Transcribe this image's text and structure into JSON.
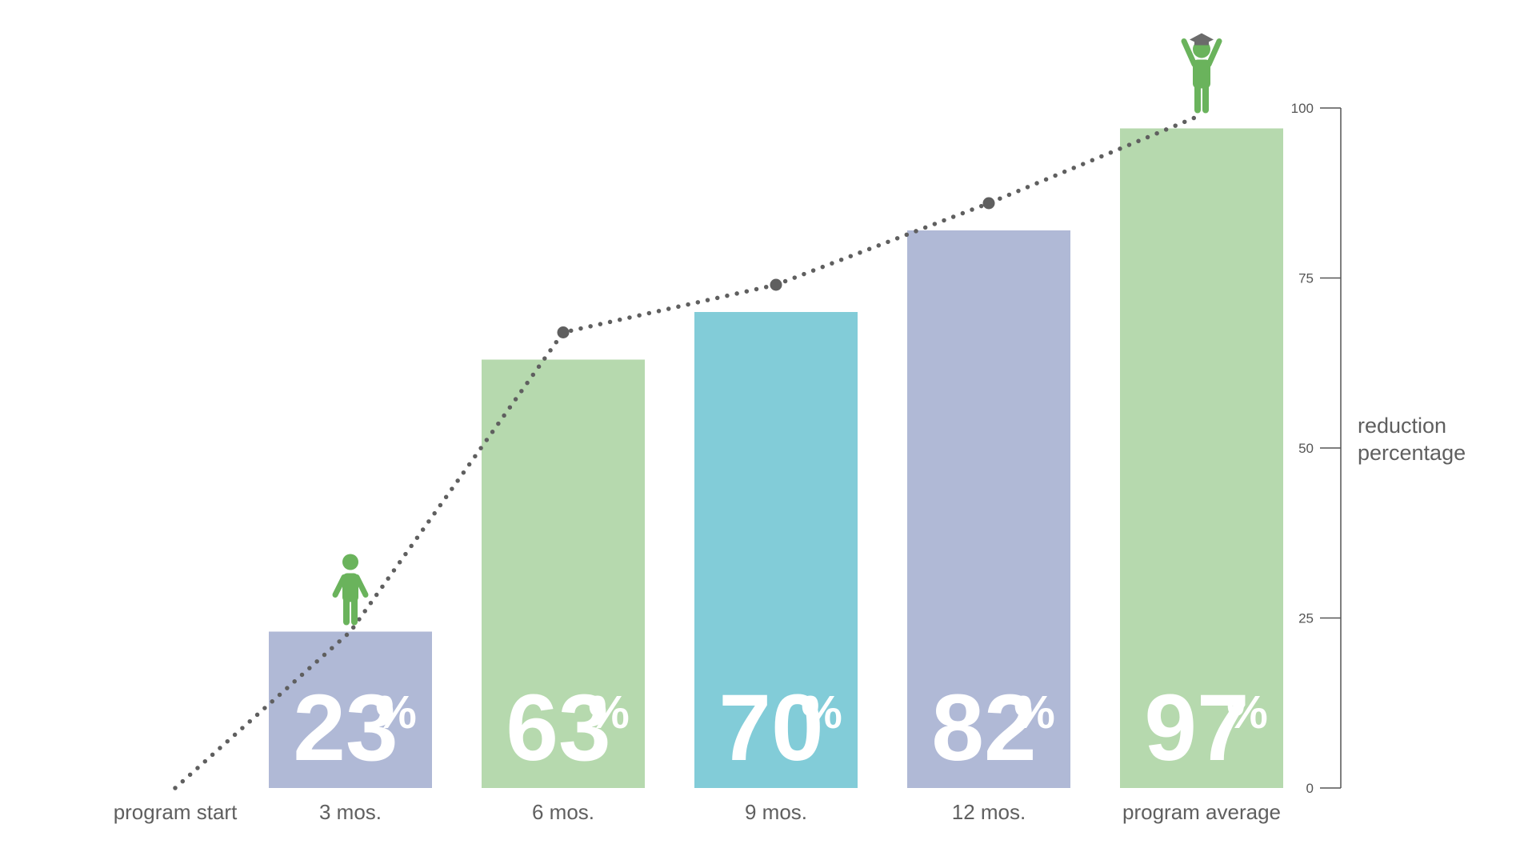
{
  "chart_data": {
    "type": "bar",
    "categories": [
      "3 mos.",
      "6 mos.",
      "9 mos.",
      "12 mos.",
      "program average"
    ],
    "values": [
      23,
      63,
      70,
      82,
      97
    ],
    "value_labels": [
      "23",
      "63",
      "70",
      "82",
      "97"
    ],
    "value_suffix": "%",
    "bar_colors": [
      "#b0b9d6",
      "#b6d9ae",
      "#82ccd8",
      "#b0b9d6",
      "#b6d9ae"
    ],
    "line_series": {
      "x_labels": [
        "program start",
        "3 mos.",
        "6 mos.",
        "9 mos.",
        "12 mos.",
        "program average"
      ],
      "values": [
        0,
        23,
        67,
        74,
        86,
        99
      ],
      "style": "dotted",
      "color": "#5f5f5f"
    },
    "start_label": "program start",
    "ylabel": [
      "reduction",
      "percentage"
    ],
    "ylim": [
      0,
      100
    ],
    "yticks": [
      0,
      25,
      50,
      75,
      100
    ],
    "y_axis_position": "right",
    "grid": false,
    "icons": [
      {
        "name": "person-icon",
        "category": "3 mos.",
        "color": "#6ab35c"
      },
      {
        "name": "graduate-icon",
        "category": "program average",
        "color": "#6ab35c"
      }
    ]
  }
}
